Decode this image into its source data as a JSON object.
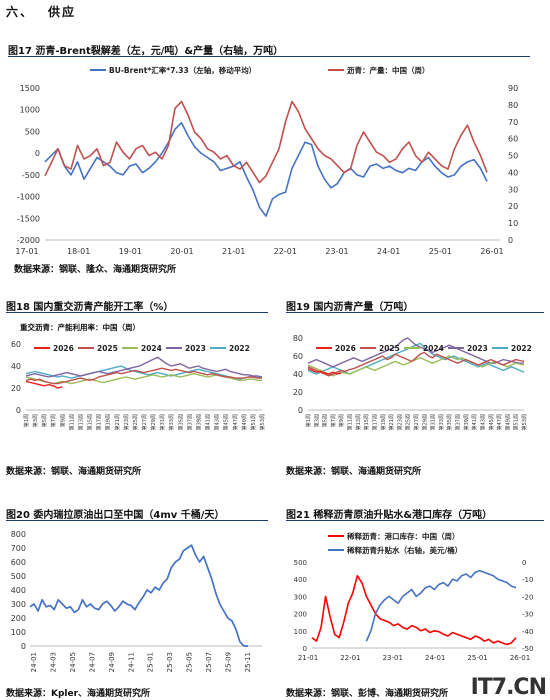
{
  "section": {
    "number": "六、",
    "title": "供应"
  },
  "figures": [
    {
      "id": "fig17",
      "caption": "图17 沥青-Brent裂解差（左，元/吨）&产量（右轴，万吨）",
      "source": "数据来源：钢联、隆众、海通期货研究所"
    },
    {
      "id": "fig18",
      "caption": "图18 国内重交沥青产能开工率（%）",
      "source": "数据来源：钢联、海通期货研究所"
    },
    {
      "id": "fig19",
      "caption": "图19 国内沥青产量（万吨）",
      "source": "数据来源：钢联、海通期货研究所"
    },
    {
      "id": "fig20",
      "caption": "图20 委内瑞拉原油出口至中国（4mv 千桶/天）",
      "source": "数据来源：Kpler、海通期货研究所"
    },
    {
      "id": "fig21",
      "caption": "图21 稀释沥青原油升贴水&港口库存（万吨）",
      "source": "数据来源：钢联、彭博、海通期货研究所"
    }
  ],
  "watermark": "IT7.CN",
  "chart_data": [
    {
      "id": "fig17",
      "type": "line",
      "series": [
        {
          "name": "BU-Brent*汇率*7.33（左轴，移动平均）",
          "color": "#4472c4",
          "axis": "left",
          "x": [
            0,
            6,
            12,
            18,
            24,
            30,
            36,
            42,
            48,
            54,
            60,
            66,
            72,
            78,
            84,
            90,
            96,
            102,
            108,
            114,
            120,
            126,
            132,
            138,
            144,
            150,
            156,
            162,
            168,
            174,
            180,
            186,
            192,
            198,
            204,
            210,
            216,
            222,
            228,
            234,
            240,
            246,
            252,
            258,
            264,
            270,
            276,
            282,
            288,
            294,
            300,
            306,
            312,
            318,
            324,
            330,
            336,
            342,
            348,
            354,
            360,
            366,
            372,
            378,
            384,
            390,
            396,
            402,
            408
          ],
          "y": [
            -200,
            -50,
            100,
            -300,
            -500,
            -200,
            -600,
            -350,
            -100,
            -200,
            -300,
            -450,
            -500,
            -300,
            -250,
            -450,
            -350,
            -200,
            0,
            250,
            550,
            700,
            400,
            150,
            0,
            -100,
            -200,
            -400,
            -350,
            -300,
            -200,
            -550,
            -850,
            -1250,
            -1450,
            -1050,
            -950,
            -900,
            -350,
            -50,
            250,
            200,
            -300,
            -600,
            -800,
            -700,
            -450,
            -350,
            -500,
            -550,
            -300,
            -250,
            -350,
            -300,
            -400,
            -450,
            -350,
            -400,
            -200,
            -100,
            -300,
            -450,
            -550,
            -500,
            -300,
            -200,
            -150,
            -350,
            -650
          ]
        },
        {
          "name": "沥青：产量：中国（周）",
          "color": "#c0504d",
          "axis": "right",
          "x": [
            0,
            6,
            12,
            18,
            24,
            30,
            36,
            42,
            48,
            54,
            60,
            66,
            72,
            78,
            84,
            90,
            96,
            102,
            108,
            114,
            120,
            126,
            132,
            138,
            144,
            150,
            156,
            162,
            168,
            174,
            180,
            186,
            192,
            198,
            204,
            210,
            216,
            222,
            228,
            234,
            240,
            246,
            252,
            258,
            264,
            270,
            276,
            282,
            288,
            294,
            300,
            306,
            312,
            318,
            324,
            330,
            336,
            342,
            348,
            354,
            360,
            366,
            372,
            378,
            384,
            390,
            396,
            402,
            408
          ],
          "y": [
            38,
            46,
            54,
            44,
            42,
            56,
            48,
            50,
            54,
            44,
            46,
            58,
            52,
            48,
            54,
            56,
            50,
            52,
            48,
            56,
            78,
            82,
            74,
            64,
            60,
            54,
            52,
            48,
            50,
            44,
            42,
            46,
            40,
            34,
            38,
            46,
            54,
            70,
            82,
            76,
            66,
            60,
            54,
            50,
            48,
            44,
            40,
            42,
            56,
            64,
            58,
            52,
            50,
            46,
            48,
            54,
            58,
            50,
            46,
            52,
            48,
            44,
            42,
            54,
            62,
            68,
            58,
            50,
            40
          ]
        }
      ],
      "xlabels": [
        "17-01",
        "18-01",
        "19-01",
        "20-01",
        "21-01",
        "22-01",
        "23-01",
        "24-01",
        "25-01",
        "26-01"
      ],
      "ylim_left": [
        -2000,
        1500
      ],
      "yticks_left": [
        -2000,
        -1500,
        -1000,
        -500,
        0,
        500,
        1000,
        1500
      ],
      "ylim_right": [
        0,
        90
      ],
      "yticks_right": [
        0,
        10,
        20,
        30,
        40,
        50,
        60,
        70,
        80,
        90
      ]
    },
    {
      "id": "fig18",
      "type": "line",
      "subtitle": "重交沥青：产能利用率：中国（周）",
      "categories_count": 53,
      "ylim": [
        0,
        60
      ],
      "yticks": [
        0,
        20,
        40,
        60
      ],
      "series": [
        {
          "name": "2026",
          "color": "#e8201c",
          "y": [
            26,
            25,
            24,
            23,
            22,
            23,
            22,
            20,
            21
          ]
        },
        {
          "name": "2025",
          "color": "#c0504d",
          "y": [
            27,
            28,
            27,
            28,
            26,
            25,
            24,
            24,
            25,
            26,
            27,
            28,
            29,
            28,
            27,
            28,
            30,
            31,
            32,
            33,
            34,
            33,
            34,
            35,
            36,
            35,
            34,
            35,
            36,
            37,
            38,
            37,
            36,
            37,
            36,
            35,
            34,
            35,
            34,
            33,
            32,
            33,
            32,
            31,
            30,
            30,
            29,
            29,
            29,
            30,
            30,
            29,
            29
          ]
        },
        {
          "name": "2024",
          "color": "#9bbb59",
          "y": [
            30,
            29,
            28,
            27,
            26,
            25,
            24,
            25,
            26,
            25,
            24,
            25,
            26,
            27,
            28,
            27,
            26,
            25,
            26,
            27,
            28,
            29,
            30,
            29,
            28,
            29,
            30,
            31,
            32,
            31,
            30,
            31,
            32,
            31,
            30,
            31,
            32,
            33,
            32,
            31,
            30,
            31,
            32,
            31,
            30,
            29,
            28,
            27,
            27,
            28,
            28,
            27,
            27
          ]
        },
        {
          "name": "2023",
          "color": "#8064a2",
          "y": [
            31,
            32,
            33,
            32,
            31,
            30,
            31,
            32,
            33,
            34,
            33,
            32,
            31,
            32,
            33,
            34,
            35,
            34,
            33,
            34,
            35,
            36,
            37,
            38,
            39,
            40,
            42,
            44,
            46,
            48,
            45,
            42,
            40,
            41,
            42,
            40,
            38,
            39,
            40,
            38,
            37,
            36,
            35,
            36,
            37,
            35,
            34,
            33,
            32,
            32,
            31,
            31,
            30
          ]
        },
        {
          "name": "2022",
          "color": "#4bacc6",
          "y": [
            33,
            34,
            35,
            34,
            33,
            32,
            31,
            30,
            31,
            30,
            29,
            30,
            31,
            32,
            33,
            34,
            35,
            36,
            37,
            38,
            39,
            40,
            38,
            36,
            35,
            34,
            33,
            32,
            33,
            34,
            33,
            32,
            31,
            32,
            33,
            34,
            35,
            36,
            37,
            36,
            35,
            34,
            33,
            32,
            31,
            30,
            29,
            28,
            29,
            30,
            30,
            30,
            29
          ]
        }
      ],
      "xlabels": [
        "第1周",
        "第3周",
        "第5周",
        "第7周",
        "第9周",
        "第11周",
        "第13周",
        "第15周",
        "第17周",
        "第19周",
        "第21周",
        "第23周",
        "第25周",
        "第27周",
        "第29周",
        "第31周",
        "第33周",
        "第35周",
        "第37周",
        "第39周",
        "第41周",
        "第43周",
        "第45周",
        "第47周",
        "第49周",
        "第51周",
        "第53周"
      ]
    },
    {
      "id": "fig19",
      "type": "line",
      "categories_count": 53,
      "ylim": [
        0,
        80
      ],
      "yticks": [
        0,
        20,
        40,
        60,
        80
      ],
      "series": [
        {
          "name": "2026",
          "color": "#e8201c",
          "y": [
            46,
            44,
            42,
            43,
            41,
            40,
            42,
            40,
            41
          ]
        },
        {
          "name": "2025",
          "color": "#c0504d",
          "y": [
            48,
            46,
            44,
            42,
            40,
            38,
            40,
            42,
            44,
            43,
            45,
            46,
            48,
            50,
            52,
            54,
            56,
            58,
            60,
            56,
            58,
            62,
            60,
            58,
            56,
            54,
            58,
            62,
            64,
            60,
            58,
            62,
            60,
            58,
            56,
            54,
            52,
            54,
            56,
            54,
            52,
            50,
            52,
            54,
            56,
            54,
            52,
            50,
            52,
            54,
            56,
            55,
            54
          ]
        },
        {
          "name": "2024",
          "color": "#9bbb59",
          "y": [
            50,
            48,
            46,
            44,
            42,
            40,
            38,
            40,
            42,
            41,
            40,
            42,
            44,
            46,
            48,
            46,
            44,
            46,
            48,
            50,
            52,
            54,
            52,
            50,
            52,
            54,
            56,
            58,
            56,
            54,
            52,
            54,
            56,
            58,
            60,
            58,
            56,
            58,
            56,
            54,
            52,
            50,
            48,
            50,
            52,
            54,
            52,
            50,
            48,
            50,
            52,
            51,
            50
          ]
        },
        {
          "name": "2023",
          "color": "#8064a2",
          "y": [
            52,
            54,
            56,
            54,
            52,
            50,
            48,
            50,
            52,
            54,
            56,
            58,
            56,
            54,
            56,
            58,
            60,
            62,
            64,
            66,
            68,
            70,
            74,
            78,
            80,
            76,
            72,
            70,
            68,
            66,
            64,
            66,
            68,
            70,
            72,
            70,
            68,
            66,
            64,
            62,
            60,
            58,
            56,
            54,
            52,
            52,
            54,
            56,
            55,
            54,
            53,
            52,
            52
          ]
        },
        {
          "name": "2022",
          "color": "#4bacc6",
          "y": [
            44,
            42,
            40,
            42,
            44,
            46,
            48,
            46,
            44,
            42,
            40,
            42,
            44,
            46,
            48,
            50,
            52,
            54,
            56,
            58,
            60,
            62,
            64,
            66,
            68,
            70,
            72,
            74,
            70,
            66,
            62,
            60,
            58,
            56,
            58,
            60,
            58,
            56,
            54,
            52,
            50,
            48,
            50,
            52,
            50,
            48,
            46,
            44,
            46,
            48,
            46,
            44,
            42
          ]
        }
      ],
      "xlabels": [
        "第1周",
        "第3周",
        "第5周",
        "第7周",
        "第9周",
        "第11周",
        "第13周",
        "第15周",
        "第17周",
        "第19周",
        "第21周",
        "第23周",
        "第25周",
        "第27周",
        "第29周",
        "第31周",
        "第33周",
        "第35周",
        "第37周",
        "第39周",
        "第41周",
        "第43周",
        "第45周",
        "第47周",
        "第49周",
        "第51周",
        "第53周"
      ]
    },
    {
      "id": "fig20",
      "type": "line",
      "ylim": [
        0,
        800
      ],
      "yticks": [
        0,
        100,
        200,
        300,
        400,
        500,
        600,
        700,
        800
      ],
      "series": [
        {
          "name": "委内瑞拉原油出口至中国",
          "color": "#4472c4",
          "y": [
            280,
            300,
            250,
            330,
            280,
            290,
            260,
            330,
            300,
            270,
            280,
            240,
            260,
            330,
            280,
            300,
            270,
            260,
            300,
            320,
            290,
            250,
            280,
            320,
            300,
            290,
            260,
            310,
            350,
            400,
            380,
            420,
            400,
            450,
            480,
            560,
            600,
            620,
            680,
            700,
            720,
            650,
            600,
            640,
            560,
            480,
            380,
            300,
            250,
            200,
            180,
            120,
            30,
            0,
            0
          ]
        }
      ],
      "xlabels": [
        "24-01",
        "24-03",
        "24-05",
        "24-07",
        "24-09",
        "24-11",
        "25-01",
        "25-03",
        "25-05",
        "25-07",
        "25-09",
        "25-11"
      ]
    },
    {
      "id": "fig21",
      "type": "line",
      "series": [
        {
          "name": "稀释沥青：港口库存：中国（周）",
          "color": "#ff0000",
          "axis": "left",
          "y": [
            60,
            40,
            120,
            300,
            180,
            80,
            60,
            150,
            260,
            320,
            420,
            380,
            300,
            250,
            200,
            170,
            160,
            150,
            130,
            140,
            120,
            110,
            130,
            120,
            100,
            110,
            90,
            100,
            95,
            80,
            70,
            90,
            80,
            70,
            60,
            50,
            70,
            60,
            40,
            50,
            30,
            40,
            30,
            20,
            30,
            60
          ]
        },
        {
          "name": "稀释沥青升贴水（右轴，美元/桶）",
          "color": "#4472c4",
          "axis": "right",
          "y": [
            null,
            null,
            null,
            null,
            null,
            null,
            null,
            null,
            null,
            null,
            null,
            null,
            -46,
            -40,
            -30,
            -25,
            -22,
            -20,
            -22,
            -24,
            -20,
            -18,
            -16,
            -20,
            -18,
            -15,
            -14,
            -16,
            -13,
            -12,
            -14,
            -10,
            -11,
            -8,
            -7,
            -9,
            -6,
            -5,
            -6,
            -7,
            -8,
            -10,
            -11,
            -12,
            -14,
            -15
          ]
        }
      ],
      "xlabels": [
        "21-01",
        "22-01",
        "23-01",
        "24-01",
        "25-01",
        "26-01"
      ],
      "ylim_left": [
        0,
        500
      ],
      "yticks_left": [
        0,
        100,
        200,
        300,
        400,
        500
      ],
      "ylim_right": [
        -50,
        0
      ],
      "yticks_right": [
        -50,
        -40,
        -30,
        -20,
        -10,
        0
      ]
    }
  ]
}
